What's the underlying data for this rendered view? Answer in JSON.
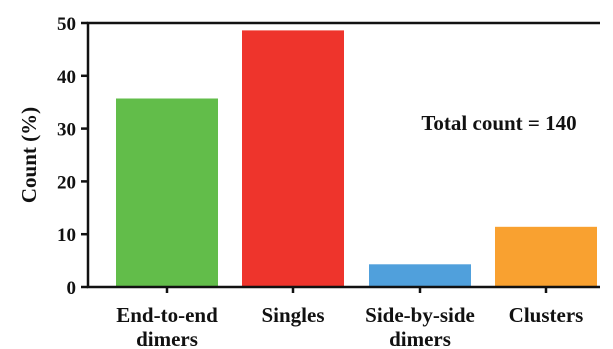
{
  "chart_data": {
    "type": "bar",
    "categories": [
      [
        "End-to-end",
        "dimers"
      ],
      [
        "Singles"
      ],
      [
        "Side-by-side",
        "dimers"
      ],
      [
        "Clusters"
      ]
    ],
    "values": [
      35.7,
      48.6,
      4.3,
      11.4
    ],
    "colors": [
      "#62bd4a",
      "#ee342c",
      "#50a0dc",
      "#f9a130"
    ],
    "title": "",
    "xlabel": "",
    "ylabel": "Count (%)",
    "ylim": [
      0,
      50
    ],
    "yticks": [
      0,
      10,
      20,
      30,
      40,
      50
    ],
    "annotation": "Total count = 140",
    "grid": false,
    "legend": "none"
  }
}
